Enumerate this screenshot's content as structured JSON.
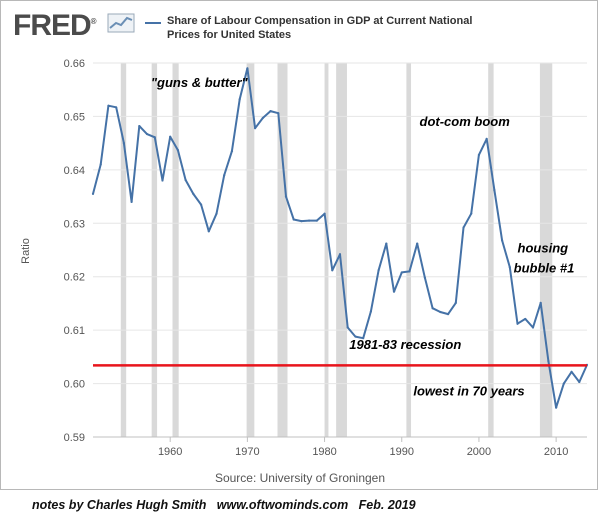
{
  "header": {
    "logo_text": "FRED",
    "logo_mark": "®",
    "logo_icon": "line-graph-icon",
    "series_title": "Share of Labour Compensation in GDP at Current National Prices for United States"
  },
  "source": "Source: University of Groningen",
  "footer_note": "notes by Charles Hugh Smith   www.oftwominds.com   Feb. 2019",
  "colors": {
    "series": "#4572a7",
    "recession": "#d9d9d9",
    "reference_line": "#e8141c",
    "grid": "#e6e6e6"
  },
  "chart_data": {
    "type": "line",
    "title": "Share of Labour Compensation in GDP at Current National Prices for United States",
    "xlabel": "",
    "ylabel": "Ratio",
    "xlim": [
      1950,
      2014
    ],
    "ylim": [
      0.59,
      0.66
    ],
    "x_ticks": [
      1960,
      1970,
      1980,
      1990,
      2000,
      2010
    ],
    "y_ticks": [
      0.59,
      0.6,
      0.61,
      0.62,
      0.63,
      0.64,
      0.65,
      0.66
    ],
    "grid": "horizontal",
    "legend": "top",
    "series": [
      {
        "name": "Share of Labour Compensation in GDP at Current National Prices for United States",
        "x": [
          1950,
          1951,
          1952,
          1953,
          1954,
          1955,
          1956,
          1957,
          1958,
          1959,
          1960,
          1961,
          1962,
          1963,
          1964,
          1965,
          1966,
          1967,
          1968,
          1969,
          1970,
          1971,
          1972,
          1973,
          1974,
          1975,
          1976,
          1977,
          1978,
          1979,
          1980,
          1981,
          1982,
          1983,
          1984,
          1985,
          1986,
          1987,
          1988,
          1989,
          1990,
          1991,
          1992,
          1993,
          1994,
          1995,
          1996,
          1997,
          1998,
          1999,
          2000,
          2001,
          2002,
          2003,
          2004,
          2005,
          2006,
          2007,
          2008,
          2009,
          2010,
          2011,
          2012,
          2013,
          2014
        ],
        "values": [
          0.6355,
          0.641,
          0.652,
          0.6517,
          0.645,
          0.634,
          0.6482,
          0.6467,
          0.6461,
          0.638,
          0.6462,
          0.6437,
          0.6381,
          0.6355,
          0.6335,
          0.6285,
          0.6318,
          0.639,
          0.6435,
          0.6532,
          0.659,
          0.6478,
          0.6497,
          0.651,
          0.6506,
          0.635,
          0.6307,
          0.6304,
          0.6305,
          0.6305,
          0.6318,
          0.6212,
          0.6242,
          0.6105,
          0.6088,
          0.6085,
          0.6135,
          0.6212,
          0.6262,
          0.6172,
          0.6208,
          0.621,
          0.6262,
          0.6198,
          0.6141,
          0.6134,
          0.613,
          0.6151,
          0.6292,
          0.6318,
          0.6428,
          0.6458,
          0.6362,
          0.6268,
          0.6218,
          0.6112,
          0.6121,
          0.6105,
          0.6151,
          0.6042,
          0.5955,
          0.6,
          0.6022,
          0.6003,
          0.6035
        ]
      }
    ],
    "recessions": [
      [
        1953.6,
        1954.3
      ],
      [
        1957.6,
        1958.3
      ],
      [
        1960.3,
        1961.1
      ],
      [
        1969.9,
        1970.9
      ],
      [
        1973.9,
        1975.2
      ],
      [
        1980.0,
        1980.5
      ],
      [
        1981.5,
        1982.9
      ],
      [
        1990.6,
        1991.2
      ],
      [
        2001.2,
        2001.9
      ],
      [
        2007.9,
        2009.5
      ]
    ],
    "reference_line": {
      "y": 0.6034
    },
    "annotations": [
      {
        "text": "\"guns & butter\"",
        "x": 1957.5,
        "y": 0.6555
      },
      {
        "text": "dot-com boom",
        "x": 1992.3,
        "y": 0.6482
      },
      {
        "text": "housing",
        "x": 2005.0,
        "y": 0.6245
      },
      {
        "text": "bubble #1",
        "x": 2004.5,
        "y": 0.6208
      },
      {
        "text": "1981-83 recession",
        "x": 1983.2,
        "y": 0.6065
      },
      {
        "text": "lowest in 70 years",
        "x": 1991.5,
        "y": 0.5978
      }
    ]
  }
}
